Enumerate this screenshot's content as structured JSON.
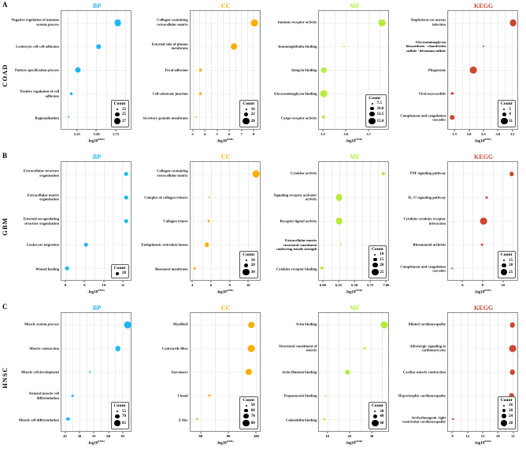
{
  "figure_meta": {
    "xlabel_base": "-log10",
    "xlabel_sup": "(FDR)",
    "legend_title": "Count"
  },
  "rows": [
    {
      "letter": "A",
      "cancer": "COAD"
    },
    {
      "letter": "B",
      "cancer": "GBM"
    },
    {
      "letter": "C",
      "cancer": "HNSC"
    }
  ],
  "chart_data": [
    {
      "type": "scatter",
      "row": "A",
      "cancer": "COAD",
      "category": "BP",
      "color": "#1db8f0",
      "xmin": 5.04,
      "xmax": 5.95,
      "ticks": [
        {
          "label": "5.25",
          "value": 5.25
        },
        {
          "label": "5.50",
          "value": 5.5
        },
        {
          "label": "5.75",
          "value": 5.75
        }
      ],
      "legend": {
        "min": 23,
        "max": 27,
        "entries": [
          {
            "label": "23",
            "value": 23
          },
          {
            "label": "25",
            "value": 25
          },
          {
            "label": "27",
            "value": 27
          }
        ]
      },
      "points": [
        {
          "term": "Negative regulation of immune system process",
          "x": 5.78,
          "count": 27
        },
        {
          "term": "Leukocyte cell-cell adhesion",
          "x": 5.53,
          "count": 25
        },
        {
          "term": "Pattern specification process",
          "x": 5.26,
          "count": 26
        },
        {
          "term": "Positive regulation of cell adhesion",
          "x": 5.17,
          "count": 24
        },
        {
          "term": "Regionalization",
          "x": 5.13,
          "count": 23
        }
      ]
    },
    {
      "type": "scatter",
      "row": "A",
      "cancer": "COAD",
      "category": "CC",
      "color": "#ffae00",
      "xmin": 2.75,
      "xmax": 8.55,
      "ticks": [
        {
          "label": "3",
          "value": 3
        },
        {
          "label": "4",
          "value": 4
        },
        {
          "label": "5",
          "value": 5
        },
        {
          "label": "6",
          "value": 6
        },
        {
          "label": "7",
          "value": 7
        },
        {
          "label": "8",
          "value": 8
        }
      ],
      "legend": {
        "min": 16,
        "max": 28,
        "entries": [
          {
            "label": "16",
            "value": 16
          },
          {
            "label": "22",
            "value": 22
          },
          {
            "label": "28",
            "value": 28
          }
        ]
      },
      "points": [
        {
          "term": "Collagen-containing extracellular matrix",
          "x": 8.1,
          "count": 28
        },
        {
          "term": "External side of plasma membrane",
          "x": 6.4,
          "count": 26
        },
        {
          "term": "Focal adhesion",
          "x": 3.6,
          "count": 19
        },
        {
          "term": "Cell-substrate junction",
          "x": 3.6,
          "count": 19
        },
        {
          "term": "Secretory granule membrane",
          "x": 3.2,
          "count": 16
        }
      ]
    },
    {
      "type": "scatter",
      "row": "A",
      "cancer": "COAD",
      "category": "MF",
      "color": "#b5ec3c",
      "xmin": 3.48,
      "xmax": 3.79,
      "ticks": [
        {
          "label": "3.5",
          "value": 3.5
        },
        {
          "label": "3.6",
          "value": 3.6
        },
        {
          "label": "3.7",
          "value": 3.7
        }
      ],
      "legend": {
        "min": 7.5,
        "max": 15,
        "entries": [
          {
            "label": "7.5",
            "value": 7.5
          },
          {
            "label": "10.0",
            "value": 10
          },
          {
            "label": "12.5",
            "value": 12.5
          },
          {
            "label": "15.0",
            "value": 15
          }
        ]
      },
      "points": [
        {
          "term": "Immune receptor activity",
          "x": 3.76,
          "count": 15
        },
        {
          "term": "Immunoglobulin binding",
          "x": 3.59,
          "count": 7.5
        },
        {
          "term": "Integrin binding",
          "x": 3.5,
          "count": 12.5
        },
        {
          "term": "Glycosaminoglycan binding",
          "x": 3.5,
          "count": 15
        },
        {
          "term": "Cargo receptor activity",
          "x": 3.5,
          "count": 10
        }
      ]
    },
    {
      "type": "scatter",
      "row": "A",
      "cancer": "COAD",
      "category": "KEGG",
      "color": "#cd4631",
      "xmin": 1.25,
      "xmax": 3.7,
      "ticks": [
        {
          "label": "1.5",
          "value": 1.5
        },
        {
          "label": "2.0",
          "value": 2.0
        },
        {
          "label": "2.5",
          "value": 2.5
        },
        {
          "label": "3.0",
          "value": 3.0
        },
        {
          "label": "3.5",
          "value": 3.5
        }
      ],
      "legend": {
        "min": 5,
        "max": 11,
        "entries": [
          {
            "label": "5",
            "value": 5
          },
          {
            "label": "8",
            "value": 8
          },
          {
            "label": "11",
            "value": 11
          }
        ]
      },
      "points": [
        {
          "term": "Staphylococcus aureus infection",
          "x": 3.55,
          "count": 11
        },
        {
          "term": "Glycosaminoglycan biosynthesis - chondroitin sulfate / dermatan sulfate",
          "x": 2.5,
          "count": 5
        },
        {
          "term": "Phagosome",
          "x": 2.15,
          "count": 11
        },
        {
          "term": "Viral myocarditis",
          "x": 1.4,
          "count": 6
        },
        {
          "term": "Complement and coagulation cascades",
          "x": 1.4,
          "count": 8
        }
      ]
    },
    {
      "type": "scatter",
      "row": "B",
      "cancer": "GBM",
      "category": "BP",
      "color": "#1db8f0",
      "xmin": 7.75,
      "xmax": 11.45,
      "ticks": [
        {
          "label": "8",
          "value": 8
        },
        {
          "label": "9",
          "value": 9
        },
        {
          "label": "10",
          "value": 10
        },
        {
          "label": "11",
          "value": 11
        }
      ],
      "legend": {
        "min": 28,
        "max": 28,
        "entries": [
          {
            "label": "28",
            "value": 28
          }
        ]
      },
      "points": [
        {
          "term": "Extracellular structure organization",
          "x": 11.2,
          "count": 28
        },
        {
          "term": "Extracellular matrix organization",
          "x": 11.2,
          "count": 28
        },
        {
          "term": "External encapsulating structure organization",
          "x": 11.2,
          "count": 28
        },
        {
          "term": "Leukocyte migration",
          "x": 9.05,
          "count": 28
        },
        {
          "term": "Wound healing",
          "x": 8.05,
          "count": 28
        }
      ]
    },
    {
      "type": "scatter",
      "row": "B",
      "cancer": "GBM",
      "category": "CC",
      "color": "#ffae00",
      "xmin": 3.7,
      "xmax": 11.3,
      "ticks": [
        {
          "label": "4",
          "value": 4
        },
        {
          "label": "6",
          "value": 6
        },
        {
          "label": "8",
          "value": 8
        },
        {
          "label": "10",
          "value": 10
        }
      ],
      "legend": {
        "min": 10,
        "max": 30,
        "entries": [
          {
            "label": "10",
            "value": 10
          },
          {
            "label": "20",
            "value": 20
          },
          {
            "label": "30",
            "value": 30
          }
        ]
      },
      "points": [
        {
          "term": "Collagen-containing extracellular matrix",
          "x": 10.9,
          "count": 30
        },
        {
          "term": "Complex of collagen trimers",
          "x": 5.8,
          "count": 10
        },
        {
          "term": "Collagen trimer",
          "x": 5.7,
          "count": 12
        },
        {
          "term": "Endoplasmic reticulum lumen",
          "x": 5.5,
          "count": 20
        },
        {
          "term": "Basement membrane",
          "x": 4.2,
          "count": 11
        }
      ]
    },
    {
      "type": "scatter",
      "row": "B",
      "cancer": "GBM",
      "category": "MF",
      "color": "#b5ec3c",
      "xmin": 5.93,
      "xmax": 7.05,
      "ticks": [
        {
          "label": "6.00",
          "value": 6.0
        },
        {
          "label": "6.25",
          "value": 6.25
        },
        {
          "label": "6.50",
          "value": 6.5
        },
        {
          "label": "6.75",
          "value": 6.75
        },
        {
          "label": "7.00",
          "value": 7.0
        }
      ],
      "legend": {
        "min": 10,
        "max": 25,
        "entries": [
          {
            "label": "10",
            "value": 10
          },
          {
            "label": "15",
            "value": 15
          },
          {
            "label": "20",
            "value": 20
          },
          {
            "label": "25",
            "value": 25
          }
        ]
      },
      "points": [
        {
          "term": "Cytokine activity",
          "x": 6.97,
          "count": 15
        },
        {
          "term": "Signaling receptor activator activity",
          "x": 6.25,
          "count": 25
        },
        {
          "term": "Receptor ligand activity",
          "x": 6.25,
          "count": 25
        },
        {
          "term": "Extracellular matrix structural constituent conferring tensile strength",
          "x": 6.28,
          "count": 10
        },
        {
          "term": "Cytokine receptor binding",
          "x": 5.97,
          "count": 15
        }
      ]
    },
    {
      "type": "scatter",
      "row": "B",
      "cancer": "GBM",
      "category": "KEGG",
      "color": "#cd4631",
      "xmin": 4.5,
      "xmax": 11.5,
      "ticks": [
        {
          "label": "6",
          "value": 6
        },
        {
          "label": "8",
          "value": 8
        },
        {
          "label": "10",
          "value": 10
        }
      ],
      "legend": {
        "min": 15,
        "max": 25,
        "entries": [
          {
            "label": "15",
            "value": 15
          },
          {
            "label": "20",
            "value": 20
          },
          {
            "label": "25",
            "value": 25
          }
        ]
      },
      "points": [
        {
          "term": "TNF signaling pathway",
          "x": 10.9,
          "count": 20
        },
        {
          "term": "IL-17 signaling pathway",
          "x": 8.4,
          "count": 16
        },
        {
          "term": "Cytokine-cytokine receptor interaction",
          "x": 8.1,
          "count": 25
        },
        {
          "term": "Rheumatoid arthritis",
          "x": 7.9,
          "count": 16
        },
        {
          "term": "Complement and coagulation cascades",
          "x": 4.9,
          "count": 14
        }
      ]
    },
    {
      "type": "scatter",
      "row": "C",
      "cancer": "HNSC",
      "category": "BP",
      "color": "#1db8f0",
      "xmin": 43.5,
      "xmax": 68,
      "ticks": [
        {
          "label": "45",
          "value": 45
        },
        {
          "label": "50",
          "value": 50
        },
        {
          "label": "55",
          "value": 55
        },
        {
          "label": "60",
          "value": 60
        },
        {
          "label": "65",
          "value": 65
        }
      ],
      "legend": {
        "min": 55,
        "max": 85,
        "entries": [
          {
            "label": "55",
            "value": 55
          },
          {
            "label": "70",
            "value": 70
          },
          {
            "label": "85",
            "value": 85
          }
        ]
      },
      "points": [
        {
          "term": "Muscle system process",
          "x": 67,
          "count": 85
        },
        {
          "term": "Muscle contraction",
          "x": 63.5,
          "count": 75
        },
        {
          "term": "Muscle cell development",
          "x": 53.5,
          "count": 55
        },
        {
          "term": "Striated muscle cell differentiation",
          "x": 47.5,
          "count": 57
        },
        {
          "term": "Muscle cell differentiation",
          "x": 45.8,
          "count": 65
        }
      ]
    },
    {
      "type": "scatter",
      "row": "C",
      "cancer": "HNSC",
      "category": "CC",
      "color": "#ffae00",
      "xmin": 52,
      "xmax": 103,
      "ticks": [
        {
          "label": "60",
          "value": 60
        },
        {
          "label": "80",
          "value": 80
        },
        {
          "label": "100",
          "value": 100
        }
      ],
      "legend": {
        "min": 50,
        "max": 80,
        "entries": [
          {
            "label": "50",
            "value": 50
          },
          {
            "label": "60",
            "value": 60
          },
          {
            "label": "70",
            "value": 70
          },
          {
            "label": "80",
            "value": 80
          }
        ]
      },
      "points": [
        {
          "term": "Myofibril",
          "x": 97,
          "count": 75
        },
        {
          "term": "Contractile fiber",
          "x": 97,
          "count": 80
        },
        {
          "term": "Sarcomere",
          "x": 95,
          "count": 78
        },
        {
          "term": "I band",
          "x": 66,
          "count": 55
        },
        {
          "term": "Z disc",
          "x": 57,
          "count": 50
        }
      ]
    },
    {
      "type": "scatter",
      "row": "C",
      "cancer": "HNSC",
      "category": "MF",
      "color": "#b5ec3c",
      "xmin": 6,
      "xmax": 38,
      "ticks": [
        {
          "label": "10",
          "value": 10
        },
        {
          "label": "20",
          "value": 20
        },
        {
          "label": "30",
          "value": 30
        }
      ],
      "legend": {
        "min": 20,
        "max": 60,
        "entries": [
          {
            "label": "20",
            "value": 20
          },
          {
            "label": "40",
            "value": 40
          },
          {
            "label": "60",
            "value": 60
          }
        ]
      },
      "points": [
        {
          "term": "Actin binding",
          "x": 36,
          "count": 60
        },
        {
          "term": "Structural constituent of muscle",
          "x": 27,
          "count": 25
        },
        {
          "term": "Actin filament binding",
          "x": 19,
          "count": 40
        },
        {
          "term": "Tropomyosin binding",
          "x": 9,
          "count": 20
        },
        {
          "term": "Calmodulin binding",
          "x": 8.5,
          "count": 25
        }
      ]
    },
    {
      "type": "scatter",
      "row": "C",
      "cancer": "HNSC",
      "category": "KEGG",
      "color": "#cd4631",
      "xmin": 8,
      "xmax": 22,
      "ticks": [
        {
          "label": "9",
          "value": 9
        },
        {
          "label": "12",
          "value": 12
        },
        {
          "label": "15",
          "value": 15
        },
        {
          "label": "18",
          "value": 18
        },
        {
          "label": "21",
          "value": 21
        }
      ],
      "legend": {
        "min": 16,
        "max": 28,
        "entries": [
          {
            "label": "16",
            "value": 16
          },
          {
            "label": "20",
            "value": 20
          },
          {
            "label": "24",
            "value": 24
          },
          {
            "label": "28",
            "value": 28
          }
        ]
      },
      "points": [
        {
          "term": "Dilated cardiomyopathy",
          "x": 21,
          "count": 24
        },
        {
          "term": "Adrenergic signaling in cardiomyocytes",
          "x": 21,
          "count": 28
        },
        {
          "term": "Cardiac muscle contraction",
          "x": 21,
          "count": 24
        },
        {
          "term": "Hypertrophic cardiomyopathy",
          "x": 20.8,
          "count": 24
        },
        {
          "term": "Arrhythmogenic right ventricular cardiomyopathy",
          "x": 9,
          "count": 16
        }
      ]
    }
  ]
}
